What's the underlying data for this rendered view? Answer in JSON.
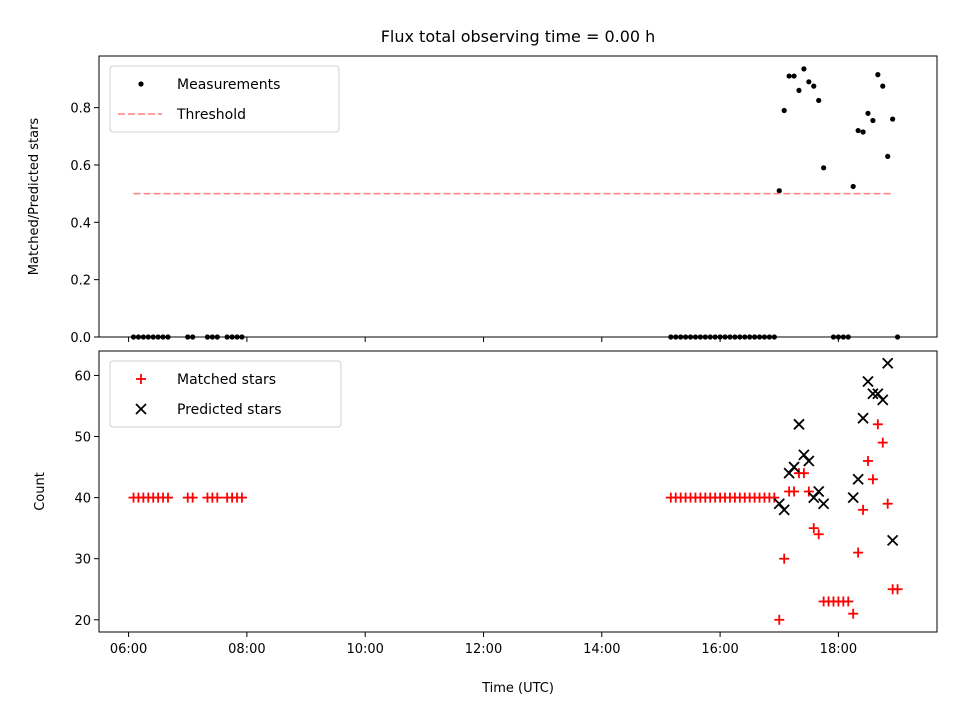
{
  "figure": {
    "title": "Flux total observing time = 0.00 h",
    "xlabel": "Time (UTC)"
  },
  "chart_data": [
    {
      "type": "scatter",
      "ylabel": "Matched/Predicted stars",
      "xlim": [
        "05:30",
        "19:40"
      ],
      "ylim": [
        0,
        0.98
      ],
      "yticks": [
        0.0,
        0.2,
        0.4,
        0.6,
        0.8
      ],
      "ytick_labels": [
        "0.0",
        "0.2",
        "0.4",
        "0.6",
        "0.8"
      ],
      "grid": false,
      "legend": "top-left",
      "series": [
        {
          "name": "Measurements",
          "kind": "dot",
          "color": "#000000",
          "points": [
            [
              "06:05",
              0
            ],
            [
              "06:10",
              0
            ],
            [
              "06:15",
              0
            ],
            [
              "06:20",
              0
            ],
            [
              "06:25",
              0
            ],
            [
              "06:30",
              0
            ],
            [
              "06:35",
              0
            ],
            [
              "06:40",
              0
            ],
            [
              "07:00",
              0
            ],
            [
              "07:05",
              0
            ],
            [
              "07:20",
              0
            ],
            [
              "07:25",
              0
            ],
            [
              "07:30",
              0
            ],
            [
              "07:40",
              0
            ],
            [
              "07:45",
              0
            ],
            [
              "07:50",
              0
            ],
            [
              "07:55",
              0
            ],
            [
              "15:10",
              0
            ],
            [
              "15:15",
              0
            ],
            [
              "15:20",
              0
            ],
            [
              "15:25",
              0
            ],
            [
              "15:30",
              0
            ],
            [
              "15:35",
              0
            ],
            [
              "15:40",
              0
            ],
            [
              "15:45",
              0
            ],
            [
              "15:50",
              0
            ],
            [
              "15:55",
              0
            ],
            [
              "16:00",
              0
            ],
            [
              "16:05",
              0
            ],
            [
              "16:10",
              0
            ],
            [
              "16:15",
              0
            ],
            [
              "16:20",
              0
            ],
            [
              "16:25",
              0
            ],
            [
              "16:30",
              0
            ],
            [
              "16:35",
              0
            ],
            [
              "16:40",
              0
            ],
            [
              "16:45",
              0
            ],
            [
              "16:50",
              0
            ],
            [
              "16:55",
              0
            ],
            [
              "17:00",
              0.51
            ],
            [
              "17:05",
              0.79
            ],
            [
              "17:10",
              0.91
            ],
            [
              "17:15",
              0.91
            ],
            [
              "17:20",
              0.86
            ],
            [
              "17:25",
              0.935
            ],
            [
              "17:30",
              0.89
            ],
            [
              "17:35",
              0.875
            ],
            [
              "17:40",
              0.825
            ],
            [
              "17:45",
              0.59
            ],
            [
              "17:55",
              0
            ],
            [
              "18:00",
              0
            ],
            [
              "18:05",
              0
            ],
            [
              "18:10",
              0
            ],
            [
              "18:15",
              0.525
            ],
            [
              "18:20",
              0.72
            ],
            [
              "18:25",
              0.715
            ],
            [
              "18:30",
              0.78
            ],
            [
              "18:35",
              0.755
            ],
            [
              "18:40",
              0.915
            ],
            [
              "18:45",
              0.875
            ],
            [
              "18:50",
              0.63
            ],
            [
              "18:55",
              0.76
            ],
            [
              "19:00",
              0
            ]
          ]
        },
        {
          "name": "Threshold",
          "kind": "dashed-line",
          "color": "#ff7f7f",
          "points": [
            [
              "06:05",
              0.5
            ],
            [
              "18:55",
              0.5
            ]
          ]
        }
      ]
    },
    {
      "type": "scatter",
      "ylabel": "Count",
      "xlim": [
        "05:30",
        "19:40"
      ],
      "ylim": [
        18,
        64
      ],
      "yticks": [
        20,
        30,
        40,
        50,
        60
      ],
      "ytick_labels": [
        "20",
        "30",
        "40",
        "50",
        "60"
      ],
      "xticks": [
        "06:00",
        "08:00",
        "10:00",
        "12:00",
        "14:00",
        "16:00",
        "18:00"
      ],
      "xtick_labels": [
        "06:00",
        "08:00",
        "10:00",
        "12:00",
        "14:00",
        "16:00",
        "18:00"
      ],
      "grid": false,
      "legend": "top-left",
      "series": [
        {
          "name": "Matched stars",
          "kind": "plus",
          "color": "#ff0000",
          "points": [
            [
              "06:05",
              40
            ],
            [
              "06:10",
              40
            ],
            [
              "06:15",
              40
            ],
            [
              "06:20",
              40
            ],
            [
              "06:25",
              40
            ],
            [
              "06:30",
              40
            ],
            [
              "06:35",
              40
            ],
            [
              "06:40",
              40
            ],
            [
              "07:00",
              40
            ],
            [
              "07:05",
              40
            ],
            [
              "07:20",
              40
            ],
            [
              "07:25",
              40
            ],
            [
              "07:30",
              40
            ],
            [
              "07:40",
              40
            ],
            [
              "07:45",
              40
            ],
            [
              "07:50",
              40
            ],
            [
              "07:55",
              40
            ],
            [
              "15:10",
              40
            ],
            [
              "15:15",
              40
            ],
            [
              "15:20",
              40
            ],
            [
              "15:25",
              40
            ],
            [
              "15:30",
              40
            ],
            [
              "15:35",
              40
            ],
            [
              "15:40",
              40
            ],
            [
              "15:45",
              40
            ],
            [
              "15:50",
              40
            ],
            [
              "15:55",
              40
            ],
            [
              "16:00",
              40
            ],
            [
              "16:05",
              40
            ],
            [
              "16:10",
              40
            ],
            [
              "16:15",
              40
            ],
            [
              "16:20",
              40
            ],
            [
              "16:25",
              40
            ],
            [
              "16:30",
              40
            ],
            [
              "16:35",
              40
            ],
            [
              "16:40",
              40
            ],
            [
              "16:45",
              40
            ],
            [
              "16:50",
              40
            ],
            [
              "16:55",
              40
            ],
            [
              "17:00",
              20
            ],
            [
              "17:05",
              30
            ],
            [
              "17:10",
              41
            ],
            [
              "17:15",
              41
            ],
            [
              "17:20",
              44
            ],
            [
              "17:25",
              44
            ],
            [
              "17:30",
              41
            ],
            [
              "17:35",
              35
            ],
            [
              "17:40",
              34
            ],
            [
              "17:45",
              23
            ],
            [
              "17:50",
              23
            ],
            [
              "17:55",
              23
            ],
            [
              "18:00",
              23
            ],
            [
              "18:05",
              23
            ],
            [
              "18:10",
              23
            ],
            [
              "18:15",
              21
            ],
            [
              "18:20",
              31
            ],
            [
              "18:25",
              38
            ],
            [
              "18:30",
              46
            ],
            [
              "18:35",
              43
            ],
            [
              "18:40",
              52
            ],
            [
              "18:45",
              49
            ],
            [
              "18:50",
              39
            ],
            [
              "18:55",
              25
            ],
            [
              "19:00",
              25
            ]
          ]
        },
        {
          "name": "Predicted stars",
          "kind": "x",
          "color": "#000000",
          "points": [
            [
              "17:00",
              39
            ],
            [
              "17:05",
              38
            ],
            [
              "17:10",
              44
            ],
            [
              "17:15",
              45
            ],
            [
              "17:20",
              52
            ],
            [
              "17:25",
              47
            ],
            [
              "17:30",
              46
            ],
            [
              "17:35",
              40
            ],
            [
              "17:40",
              41
            ],
            [
              "17:45",
              39
            ],
            [
              "18:15",
              40
            ],
            [
              "18:20",
              43
            ],
            [
              "18:25",
              53
            ],
            [
              "18:30",
              59
            ],
            [
              "18:35",
              57
            ],
            [
              "18:40",
              57
            ],
            [
              "18:45",
              56
            ],
            [
              "18:50",
              62
            ],
            [
              "18:55",
              33
            ]
          ]
        }
      ]
    }
  ]
}
